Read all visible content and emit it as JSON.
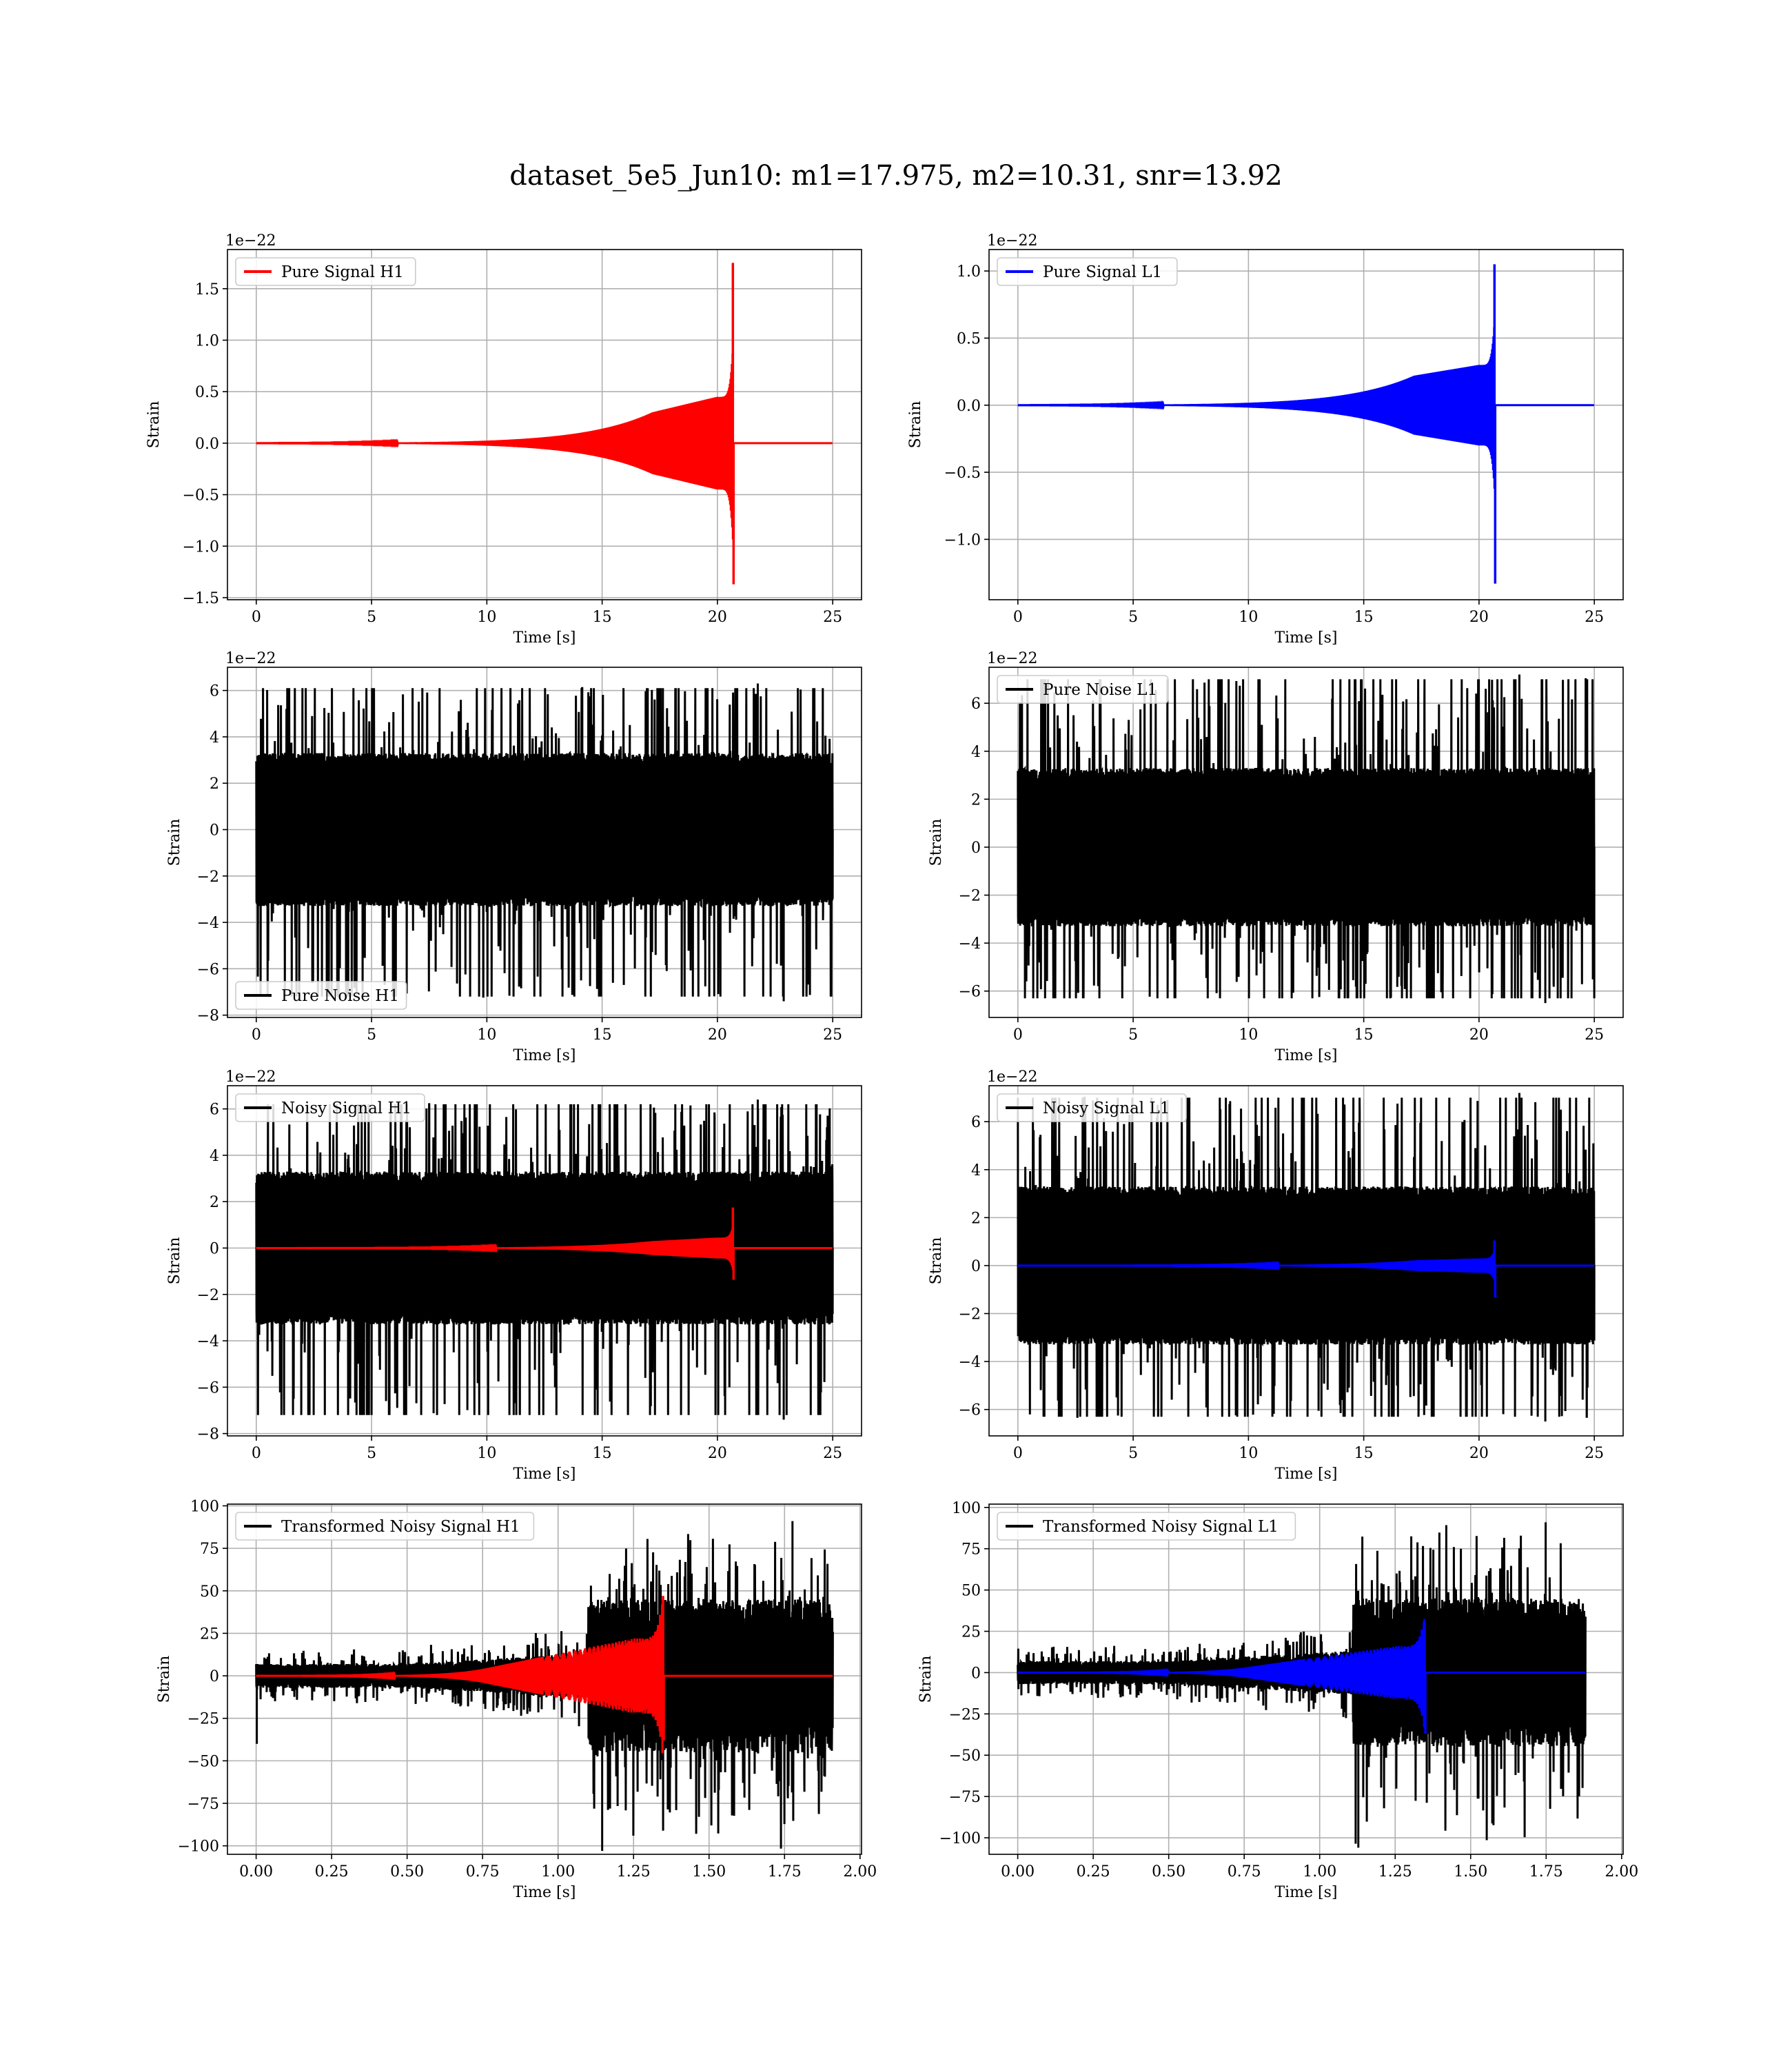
{
  "figure": {
    "title": "dataset_5e5_Jun10: m1=17.975, m2=10.31, snr=13.92"
  },
  "colors": {
    "h1_signal": "#ff0000",
    "l1_signal": "#0000ff",
    "noise": "#000000"
  },
  "chart_data": [
    {
      "type": "line",
      "panel": "pure-signal-h1",
      "detector": "H1",
      "offset_text": "1e−22",
      "xlabel": "Time [s]",
      "ylabel": "Strain",
      "xlim": [
        -1.25,
        26.25
      ],
      "ylim": [
        -1.52,
        1.88
      ],
      "xticks": [
        0,
        5,
        10,
        15,
        20,
        25
      ],
      "xtick_labels": [
        "0",
        "5",
        "10",
        "15",
        "20",
        "25"
      ],
      "yticks": [
        -1.5,
        -1.0,
        -0.5,
        0.0,
        0.5,
        1.0,
        1.5
      ],
      "ytick_labels": [
        "−1.5",
        "−1.0",
        "−0.5",
        "0.0",
        "0.5",
        "1.0",
        "1.5"
      ],
      "grid": true,
      "legend": {
        "placement": "upper left",
        "entries": [
          "Pure Signal H1"
        ]
      },
      "series": [
        {
          "name": "Pure Signal H1",
          "kind": "chirp",
          "color": "#ff0000",
          "x_start": 0,
          "x_end": 25,
          "merger_time": 20.7,
          "peak_max": 1.75,
          "peak_min": -1.37,
          "amp_at_17": 0.3,
          "amp_at_20": 0.45
        }
      ]
    },
    {
      "type": "line",
      "panel": "pure-signal-l1",
      "detector": "L1",
      "offset_text": "1e−22",
      "xlabel": "Time [s]",
      "ylabel": "Strain",
      "xlim": [
        -1.25,
        26.25
      ],
      "ylim": [
        -1.45,
        1.16
      ],
      "xticks": [
        0,
        5,
        10,
        15,
        20,
        25
      ],
      "xtick_labels": [
        "0",
        "5",
        "10",
        "15",
        "20",
        "25"
      ],
      "yticks": [
        -1.0,
        -0.5,
        0.0,
        0.5,
        1.0
      ],
      "ytick_labels": [
        "−1.0",
        "−0.5",
        "0.0",
        "0.5",
        "1.0"
      ],
      "grid": true,
      "legend": {
        "placement": "upper left",
        "entries": [
          "Pure Signal L1"
        ]
      },
      "series": [
        {
          "name": "Pure Signal L1",
          "kind": "chirp",
          "color": "#0000ff",
          "x_start": 0,
          "x_end": 25,
          "merger_time": 20.7,
          "peak_max": 1.05,
          "peak_min": -1.33,
          "amp_at_17": 0.22,
          "amp_at_20": 0.3
        }
      ]
    },
    {
      "type": "line",
      "panel": "pure-noise-h1",
      "detector": "H1",
      "offset_text": "1e−22",
      "xlabel": "Time [s]",
      "ylabel": "Strain",
      "xlim": [
        -1.25,
        26.25
      ],
      "ylim": [
        -8.1,
        7.0
      ],
      "xticks": [
        0,
        5,
        10,
        15,
        20,
        25
      ],
      "xtick_labels": [
        "0",
        "5",
        "10",
        "15",
        "20",
        "25"
      ],
      "yticks": [
        -8,
        -6,
        -4,
        -2,
        0,
        2,
        4,
        6
      ],
      "ytick_labels": [
        "−8",
        "−6",
        "−4",
        "−2",
        "0",
        "2",
        "4",
        "6"
      ],
      "grid": true,
      "legend": {
        "placement": "lower left",
        "entries": [
          "Pure Noise H1"
        ]
      },
      "series": [
        {
          "name": "Pure Noise H1",
          "kind": "noise",
          "color": "#000000",
          "x_start": 0,
          "x_end": 25,
          "max": 6.3,
          "min": -7.4,
          "band": 3.3
        }
      ]
    },
    {
      "type": "line",
      "panel": "pure-noise-l1",
      "detector": "L1",
      "offset_text": "1e−22",
      "xlabel": "Time [s]",
      "ylabel": "Strain",
      "xlim": [
        -1.25,
        26.25
      ],
      "ylim": [
        -7.1,
        7.5
      ],
      "xticks": [
        0,
        5,
        10,
        15,
        20,
        25
      ],
      "xtick_labels": [
        "0",
        "5",
        "10",
        "15",
        "20",
        "25"
      ],
      "yticks": [
        -6,
        -4,
        -2,
        0,
        2,
        4,
        6
      ],
      "ytick_labels": [
        "−6",
        "−4",
        "−2",
        "0",
        "2",
        "4",
        "6"
      ],
      "grid": true,
      "legend": {
        "placement": "upper left",
        "entries": [
          "Pure Noise L1"
        ]
      },
      "series": [
        {
          "name": "Pure Noise L1",
          "kind": "noise",
          "color": "#000000",
          "x_start": 0,
          "x_end": 25,
          "max": 7.2,
          "min": -6.5,
          "band": 3.3
        }
      ]
    },
    {
      "type": "line",
      "panel": "noisy-signal-h1",
      "detector": "H1",
      "offset_text": "1e−22",
      "xlabel": "Time [s]",
      "ylabel": "Strain",
      "xlim": [
        -1.25,
        26.25
      ],
      "ylim": [
        -8.1,
        7.0
      ],
      "xticks": [
        0,
        5,
        10,
        15,
        20,
        25
      ],
      "xtick_labels": [
        "0",
        "5",
        "10",
        "15",
        "20",
        "25"
      ],
      "yticks": [
        -8,
        -6,
        -4,
        -2,
        0,
        2,
        4,
        6
      ],
      "ytick_labels": [
        "−8",
        "−6",
        "−4",
        "−2",
        "0",
        "2",
        "4",
        "6"
      ],
      "grid": true,
      "legend": {
        "placement": "upper left",
        "entries": [
          "Noisy Signal H1"
        ]
      },
      "series": [
        {
          "name": "Noisy Signal H1",
          "kind": "noise",
          "color": "#000000",
          "x_start": 0,
          "x_end": 25,
          "max": 6.4,
          "min": -7.4,
          "band": 3.3
        },
        {
          "kind": "chirp",
          "color": "#ff0000",
          "x_start": 0,
          "x_end": 25,
          "merger_time": 20.7,
          "peak_max": 1.75,
          "peak_min": -1.37,
          "amp_at_17": 0.3,
          "amp_at_20": 0.45
        }
      ]
    },
    {
      "type": "line",
      "panel": "noisy-signal-l1",
      "detector": "L1",
      "offset_text": "1e−22",
      "xlabel": "Time [s]",
      "ylabel": "Strain",
      "xlim": [
        -1.25,
        26.25
      ],
      "ylim": [
        -7.1,
        7.5
      ],
      "xticks": [
        0,
        5,
        10,
        15,
        20,
        25
      ],
      "xtick_labels": [
        "0",
        "5",
        "10",
        "15",
        "20",
        "25"
      ],
      "yticks": [
        -6,
        -4,
        -2,
        0,
        2,
        4,
        6
      ],
      "ytick_labels": [
        "−6",
        "−4",
        "−2",
        "0",
        "2",
        "4",
        "6"
      ],
      "grid": true,
      "legend": {
        "placement": "upper left",
        "entries": [
          "Noisy Signal L1"
        ]
      },
      "series": [
        {
          "name": "Noisy Signal L1",
          "kind": "noise",
          "color": "#000000",
          "x_start": 0,
          "x_end": 25,
          "max": 7.2,
          "min": -6.5,
          "band": 3.3
        },
        {
          "kind": "chirp",
          "color": "#0000ff",
          "x_start": 0,
          "x_end": 25,
          "merger_time": 20.7,
          "peak_max": 1.05,
          "peak_min": -1.33,
          "amp_at_17": 0.22,
          "amp_at_20": 0.3
        }
      ]
    },
    {
      "type": "line",
      "panel": "transformed-noisy-signal-h1",
      "detector": "H1",
      "xlabel": "Time [s]",
      "ylabel": "Strain",
      "xlim": [
        -0.095,
        2.005
      ],
      "ylim": [
        -105,
        101
      ],
      "xticks": [
        0.0,
        0.25,
        0.5,
        0.75,
        1.0,
        1.25,
        1.5,
        1.75,
        2.0
      ],
      "xtick_labels": [
        "0.00",
        "0.25",
        "0.50",
        "0.75",
        "1.00",
        "1.25",
        "1.50",
        "1.75",
        "2.00"
      ],
      "yticks": [
        -100,
        -75,
        -50,
        -25,
        0,
        25,
        50,
        75,
        100
      ],
      "ytick_labels": [
        "−100",
        "−75",
        "−50",
        "−25",
        "0",
        "25",
        "50",
        "75",
        "100"
      ],
      "grid": true,
      "legend": {
        "placement": "upper left",
        "entries": [
          "Transformed Noisy Signal H1"
        ]
      },
      "series": [
        {
          "name": "Transformed Noisy Signal H1",
          "kind": "tnoise",
          "color": "#000000",
          "x_start": 0.0,
          "x_end": 1.91,
          "break_time": 1.1,
          "early_band": 7,
          "late_band": 45,
          "max": 91,
          "min": -103,
          "first_min": -40
        },
        {
          "kind": "tchirp",
          "color": "#ff0000",
          "x_start": 0.0,
          "x_end": 1.91,
          "merger_time": 1.35,
          "peak_max": 47,
          "peak_min": -38,
          "amp_at_0_75": 4,
          "amp_at_1_25": 22
        }
      ]
    },
    {
      "type": "line",
      "panel": "transformed-noisy-signal-l1",
      "detector": "L1",
      "xlabel": "Time [s]",
      "ylabel": "Strain",
      "xlim": [
        -0.095,
        2.005
      ],
      "ylim": [
        -110,
        102
      ],
      "xticks": [
        0.0,
        0.25,
        0.5,
        0.75,
        1.0,
        1.25,
        1.5,
        1.75,
        2.0
      ],
      "xtick_labels": [
        "0.00",
        "0.25",
        "0.50",
        "0.75",
        "1.00",
        "1.25",
        "1.50",
        "1.75",
        "2.00"
      ],
      "yticks": [
        -100,
        -75,
        -50,
        -25,
        0,
        25,
        50,
        75,
        100
      ],
      "ytick_labels": [
        "−100",
        "−75",
        "−50",
        "−25",
        "0",
        "25",
        "50",
        "75",
        "100"
      ],
      "grid": true,
      "legend": {
        "placement": "upper left",
        "entries": [
          "Transformed Noisy Signal L1"
        ]
      },
      "series": [
        {
          "name": "Transformed Noisy Signal L1",
          "kind": "tnoise",
          "color": "#000000",
          "x_start": 0.0,
          "x_end": 1.88,
          "break_time": 1.11,
          "early_band": 7,
          "late_band": 45,
          "max": 91,
          "min": -106,
          "first_min": -10
        },
        {
          "kind": "tchirp",
          "color": "#0000ff",
          "x_start": 0.0,
          "x_end": 1.88,
          "merger_time": 1.35,
          "peak_max": 30,
          "peak_min": -37,
          "amp_at_0_75": 3,
          "amp_at_1_25": 16
        }
      ]
    }
  ]
}
